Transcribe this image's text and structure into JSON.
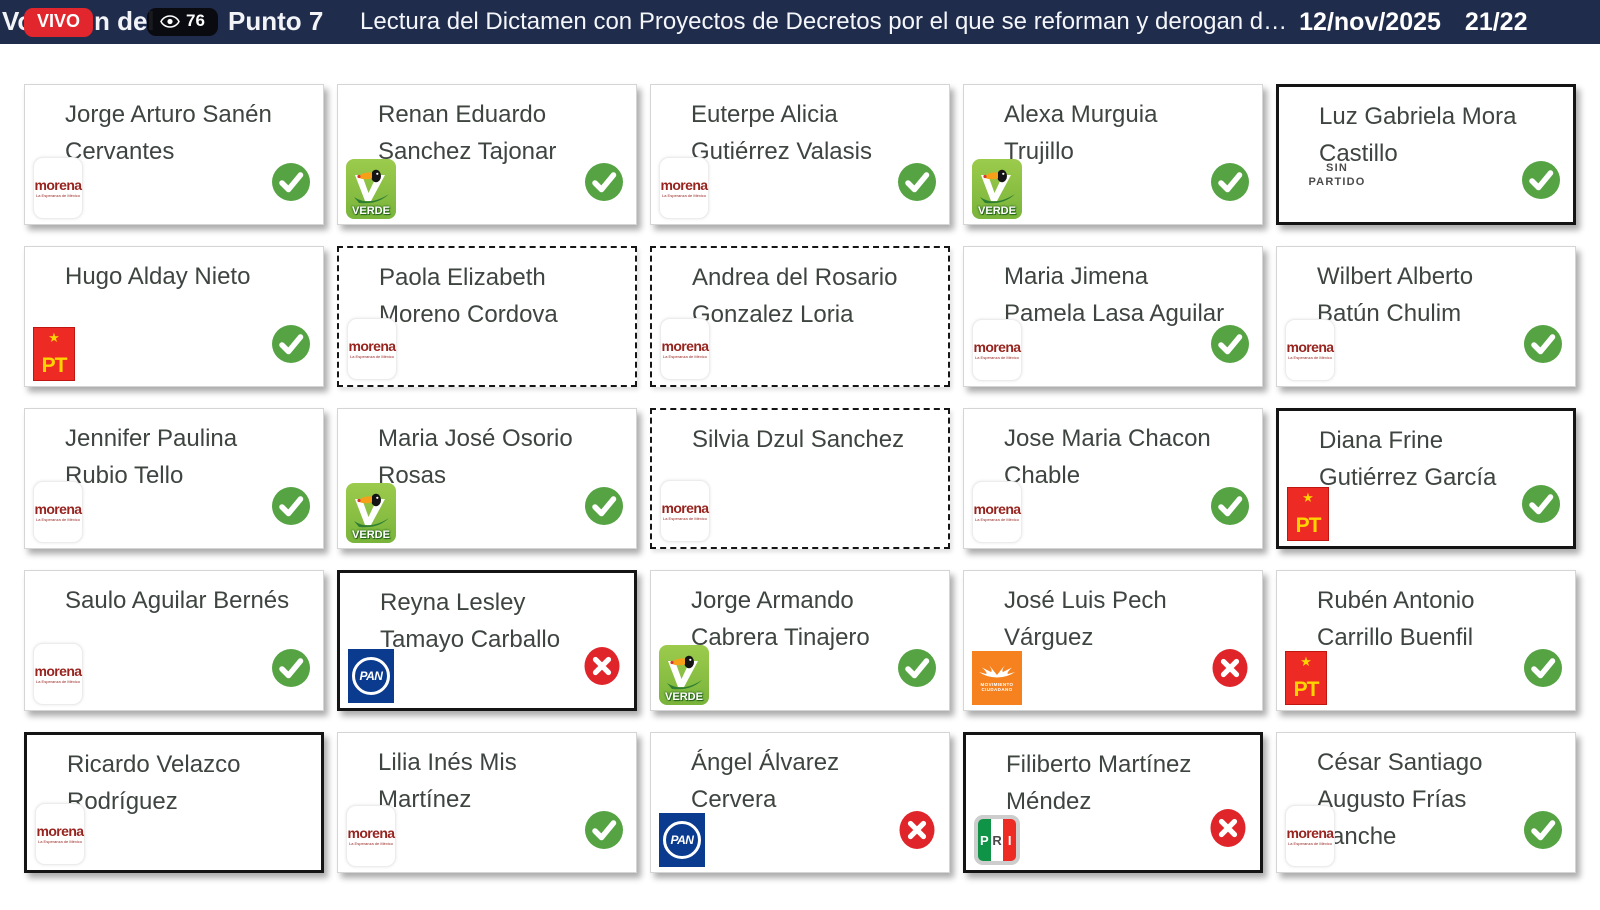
{
  "header": {
    "live_badge": "VIVO",
    "viewer_count": "76",
    "underlay_prefix": "Votación del",
    "underlay_point": "Punto 7",
    "title": "Lectura del Dictamen con Proyectos de Decretos por el que se reforman y derogan d…",
    "date": "12/nov/2025",
    "counter": "21/22",
    "bg_color": "#1f2c4b",
    "live_color": "#e2262d"
  },
  "parties": {
    "morena": {
      "label": "morena",
      "sub": "La Esperanza de México"
    },
    "verde": {
      "label": "VERDE"
    },
    "pt": {
      "star": "★",
      "label": "PT"
    },
    "pan": {
      "label": "PAN"
    },
    "mc": {
      "line1": "MOVIMIENTO",
      "line2": "CIUDADANO"
    },
    "pri": {
      "p": "P",
      "r": "R",
      "i": "I"
    },
    "sp": {
      "line1": "SIN",
      "line2": "PARTIDO"
    }
  },
  "votes": {
    "yes_color": "#56a344",
    "no_color": "#e0252a"
  },
  "cards": [
    {
      "name_lines": [
        "Jorge Arturo Sanén",
        "Cervantes"
      ],
      "party": "morena",
      "vote": "yes",
      "border": "normal"
    },
    {
      "name_lines": [
        "Renan Eduardo",
        "Sanchez Tajonar"
      ],
      "party": "verde",
      "vote": "yes",
      "border": "normal"
    },
    {
      "name_lines": [
        "Euterpe Alicia",
        "Gutiérrez Valasis"
      ],
      "party": "morena",
      "vote": "yes",
      "border": "normal"
    },
    {
      "name_lines": [
        "Alexa Murguia",
        "Trujillo"
      ],
      "party": "verde",
      "vote": "yes",
      "border": "normal"
    },
    {
      "name_lines": [
        "Luz Gabriela Mora",
        "Castillo"
      ],
      "party": "sp",
      "vote": "yes",
      "border": "bold"
    },
    {
      "name_lines": [
        "Hugo Alday Nieto"
      ],
      "party": "pt",
      "vote": "yes",
      "border": "normal"
    },
    {
      "name_lines": [
        "Paola Elizabeth",
        "Moreno Cordova"
      ],
      "party": "morena",
      "vote": "none",
      "border": "dashed"
    },
    {
      "name_lines": [
        "Andrea del Rosario",
        "Gonzalez Loria"
      ],
      "party": "morena",
      "vote": "none",
      "border": "dashed"
    },
    {
      "name_lines": [
        "Maria Jimena",
        "Pamela Lasa Aguilar"
      ],
      "party": "morena",
      "vote": "yes",
      "border": "normal"
    },
    {
      "name_lines": [
        "Wilbert Alberto",
        "Batún Chulim"
      ],
      "party": "morena",
      "vote": "yes",
      "border": "normal"
    },
    {
      "name_lines": [
        "Jennifer Paulina",
        "Rubio Tello"
      ],
      "party": "morena",
      "vote": "yes",
      "border": "normal"
    },
    {
      "name_lines": [
        "Maria José Osorio",
        "Rosas"
      ],
      "party": "verde",
      "vote": "yes",
      "border": "normal"
    },
    {
      "name_lines": [
        "Silvia Dzul Sanchez"
      ],
      "party": "morena",
      "vote": "none",
      "border": "dashed"
    },
    {
      "name_lines": [
        "Jose Maria Chacon",
        "Chable"
      ],
      "party": "morena",
      "vote": "yes",
      "border": "normal"
    },
    {
      "name_lines": [
        "Diana Frine",
        "Gutiérrez García"
      ],
      "party": "pt",
      "vote": "yes",
      "border": "bold"
    },
    {
      "name_lines": [
        "Saulo Aguilar Bernés"
      ],
      "party": "morena",
      "vote": "yes",
      "border": "normal"
    },
    {
      "name_lines": [
        "Reyna Lesley",
        "Tamayo Carballo"
      ],
      "party": "pan",
      "vote": "no",
      "border": "bold"
    },
    {
      "name_lines": [
        "Jorge Armando",
        "Cabrera Tinajero"
      ],
      "party": "verde",
      "vote": "yes",
      "border": "normal"
    },
    {
      "name_lines": [
        "José Luis Pech",
        "Várguez"
      ],
      "party": "mc",
      "vote": "no",
      "border": "normal"
    },
    {
      "name_lines": [
        "Rubén Antonio",
        "Carrillo Buenfil"
      ],
      "party": "pt",
      "vote": "yes",
      "border": "normal"
    },
    {
      "name_lines": [
        "Ricardo Velazco",
        "Rodríguez"
      ],
      "party": "morena",
      "vote": "none",
      "border": "bold"
    },
    {
      "name_lines": [
        "Lilia Inés Mis",
        "Martínez"
      ],
      "party": "morena",
      "vote": "yes",
      "border": "normal"
    },
    {
      "name_lines": [
        "Ángel Álvarez",
        "Cervera"
      ],
      "party": "pan",
      "vote": "no",
      "border": "normal"
    },
    {
      "name_lines": [
        "Filiberto Martínez",
        "Méndez"
      ],
      "party": "pri",
      "vote": "no",
      "border": "bold"
    },
    {
      "name_lines": [
        "César Santiago",
        "Augusto Frías",
        "anche"
      ],
      "party": "morena",
      "vote": "yes",
      "border": "normal"
    }
  ]
}
